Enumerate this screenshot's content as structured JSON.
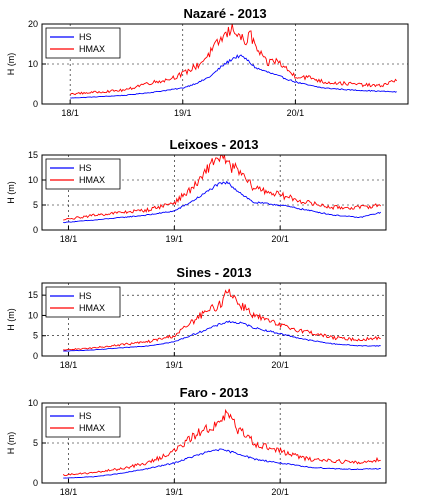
{
  "chart_data": [
    {
      "type": "line",
      "title": "Nazaré - 2013",
      "ylabel": "H (m)",
      "ylim": [
        0,
        20
      ],
      "yticks": [
        0,
        10,
        20
      ],
      "xlim": [
        0,
        3.25
      ],
      "xticks": [
        {
          "value": 0.25,
          "label": "18/1"
        },
        {
          "value": 1.25,
          "label": "19/1"
        },
        {
          "value": 2.25,
          "label": "20/1"
        }
      ],
      "grid": true,
      "legend": "top-left",
      "series": [
        {
          "name": "HS",
          "color": "#0000ff",
          "x": [
            0.25,
            0.5,
            0.75,
            1.0,
            1.25,
            1.4,
            1.5,
            1.6,
            1.7,
            1.75,
            1.8,
            1.9,
            2.0,
            2.1,
            2.25,
            2.4,
            2.5,
            2.75,
            3.0,
            3.15
          ],
          "y": [
            1.5,
            1.8,
            2.2,
            3.0,
            4.0,
            5.5,
            7.0,
            9.5,
            11.5,
            12.0,
            11.5,
            9.0,
            8.0,
            7.0,
            5.5,
            4.5,
            4.0,
            3.5,
            3.2,
            3.0
          ]
        },
        {
          "name": "HMAX",
          "color": "#ff0000",
          "x": [
            0.25,
            0.5,
            0.75,
            0.9,
            1.0,
            1.1,
            1.25,
            1.4,
            1.5,
            1.6,
            1.7,
            1.75,
            1.8,
            1.85,
            1.9,
            1.95,
            2.0,
            2.05,
            2.1,
            2.2,
            2.25,
            2.4,
            2.5,
            2.75,
            3.0,
            3.15
          ],
          "y": [
            2.5,
            3.0,
            3.5,
            5.0,
            5.5,
            6.0,
            7.5,
            10.0,
            13.0,
            16.5,
            19.0,
            17.5,
            15.0,
            17.5,
            14.0,
            12.0,
            10.0,
            11.0,
            10.5,
            8.0,
            7.0,
            6.5,
            5.5,
            5.0,
            4.5,
            6.0
          ]
        }
      ]
    },
    {
      "type": "line",
      "title": "Leixoes - 2013",
      "ylabel": "H (m)",
      "ylim": [
        0,
        15
      ],
      "yticks": [
        0,
        5,
        10,
        15
      ],
      "xlim": [
        0,
        3.25
      ],
      "xticks": [
        {
          "value": 0.25,
          "label": "18/1"
        },
        {
          "value": 1.25,
          "label": "19/1"
        },
        {
          "value": 2.25,
          "label": "20/1"
        }
      ],
      "grid": true,
      "legend": "top-left",
      "series": [
        {
          "name": "HS",
          "color": "#0000ff",
          "x": [
            0.2,
            0.5,
            0.75,
            1.0,
            1.25,
            1.4,
            1.55,
            1.65,
            1.75,
            1.9,
            2.0,
            2.25,
            2.5,
            2.75,
            3.0,
            3.2
          ],
          "y": [
            1.5,
            2.0,
            2.5,
            3.0,
            3.8,
            5.5,
            7.5,
            9.0,
            9.5,
            7.0,
            5.5,
            5.0,
            4.0,
            3.0,
            2.5,
            3.5
          ]
        },
        {
          "name": "HMAX",
          "color": "#ff0000",
          "x": [
            0.2,
            0.5,
            0.75,
            1.0,
            1.25,
            1.4,
            1.5,
            1.6,
            1.7,
            1.75,
            1.85,
            1.95,
            2.0,
            2.25,
            2.5,
            2.75,
            3.0,
            3.2
          ],
          "y": [
            2.0,
            3.0,
            3.5,
            4.0,
            5.5,
            8.0,
            10.0,
            13.5,
            15.0,
            13.0,
            12.0,
            9.5,
            8.5,
            7.0,
            5.5,
            4.5,
            4.5,
            5.0
          ]
        }
      ]
    },
    {
      "type": "line",
      "title": "Sines - 2013",
      "ylabel": "H (m)",
      "ylim": [
        0,
        18
      ],
      "yticks": [
        0,
        5,
        10,
        15
      ],
      "xlim": [
        0,
        3.25
      ],
      "xticks": [
        {
          "value": 0.25,
          "label": "18/1"
        },
        {
          "value": 1.25,
          "label": "19/1"
        },
        {
          "value": 2.25,
          "label": "20/1"
        }
      ],
      "grid": true,
      "legend": "top-left",
      "series": [
        {
          "name": "HS",
          "color": "#0000ff",
          "x": [
            0.2,
            0.5,
            0.75,
            1.0,
            1.25,
            1.4,
            1.55,
            1.65,
            1.75,
            1.9,
            2.0,
            2.25,
            2.5,
            2.75,
            3.0,
            3.2
          ],
          "y": [
            1.2,
            1.5,
            2.0,
            2.5,
            3.5,
            5.0,
            6.5,
            7.5,
            8.5,
            8.0,
            7.0,
            5.5,
            4.0,
            3.0,
            2.5,
            2.5
          ]
        },
        {
          "name": "HMAX",
          "color": "#ff0000",
          "x": [
            0.2,
            0.5,
            0.75,
            1.0,
            1.25,
            1.4,
            1.5,
            1.6,
            1.7,
            1.75,
            1.85,
            1.95,
            2.0,
            2.25,
            2.5,
            2.75,
            3.0,
            3.2
          ],
          "y": [
            1.5,
            2.0,
            2.8,
            3.5,
            5.0,
            8.0,
            10.0,
            11.5,
            13.0,
            17.0,
            13.0,
            11.5,
            10.0,
            7.5,
            6.0,
            4.5,
            4.0,
            4.5
          ]
        }
      ]
    },
    {
      "type": "line",
      "title": "Faro - 2013",
      "ylabel": "H (m)",
      "ylim": [
        0,
        10
      ],
      "yticks": [
        0,
        5,
        10
      ],
      "xlim": [
        0,
        3.25
      ],
      "xticks": [
        {
          "value": 0.25,
          "label": "18/1"
        },
        {
          "value": 1.25,
          "label": "19/1"
        },
        {
          "value": 2.25,
          "label": "20/1"
        }
      ],
      "grid": true,
      "legend": "top-left",
      "series": [
        {
          "name": "HS",
          "color": "#0000ff",
          "x": [
            0.2,
            0.5,
            0.75,
            1.0,
            1.25,
            1.4,
            1.55,
            1.65,
            1.75,
            1.9,
            2.0,
            2.25,
            2.5,
            2.75,
            3.0,
            3.2
          ],
          "y": [
            0.6,
            0.8,
            1.2,
            1.8,
            2.5,
            3.2,
            3.8,
            4.2,
            4.0,
            3.5,
            3.0,
            2.5,
            2.0,
            1.8,
            1.7,
            1.8
          ]
        },
        {
          "name": "HMAX",
          "color": "#ff0000",
          "x": [
            0.2,
            0.5,
            0.75,
            1.0,
            1.25,
            1.4,
            1.5,
            1.6,
            1.7,
            1.75,
            1.85,
            1.95,
            2.0,
            2.25,
            2.5,
            2.75,
            3.0,
            3.2
          ],
          "y": [
            1.0,
            1.3,
            1.8,
            2.5,
            4.0,
            5.5,
            6.5,
            7.0,
            7.5,
            9.0,
            6.5,
            6.0,
            5.0,
            4.0,
            3.0,
            2.8,
            2.5,
            3.0
          ]
        }
      ]
    }
  ]
}
